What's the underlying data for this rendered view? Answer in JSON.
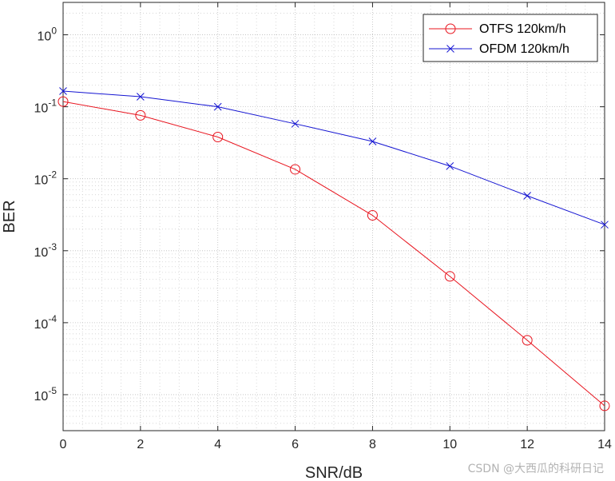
{
  "chart_data": {
    "type": "line",
    "title": "",
    "xlabel": "SNR/dB",
    "ylabel": "BER",
    "yscale": "log",
    "xlim": [
      0,
      14
    ],
    "ylim_exponent": [
      -5.5,
      0.45
    ],
    "grid": "major and minor, dotted",
    "x": [
      0,
      2,
      4,
      6,
      8,
      10,
      12,
      14
    ],
    "xticks": [
      "0",
      "2",
      "4",
      "6",
      "8",
      "10",
      "12",
      "14"
    ],
    "yticks": [
      {
        "base": "10",
        "exp": "0",
        "value": 0
      },
      {
        "base": "10",
        "exp": "-1",
        "value": -1
      },
      {
        "base": "10",
        "exp": "-2",
        "value": -2
      },
      {
        "base": "10",
        "exp": "-3",
        "value": -3
      },
      {
        "base": "10",
        "exp": "-4",
        "value": -4
      },
      {
        "base": "10",
        "exp": "-5",
        "value": -5
      }
    ],
    "legend_position": "top-right",
    "series": [
      {
        "name": "OTFS 120km/h",
        "color": "#e8141e",
        "marker": "circle",
        "values": [
          0.118,
          0.076,
          0.038,
          0.0135,
          0.0031,
          0.00044,
          5.7e-05,
          7e-06
        ]
      },
      {
        "name": "OFDM 120km/h",
        "color": "#1414d2",
        "marker": "x",
        "values": [
          0.165,
          0.138,
          0.1,
          0.058,
          0.033,
          0.015,
          0.0058,
          0.0023
        ]
      }
    ]
  },
  "watermark": "CSDN @大西瓜的科研日记"
}
